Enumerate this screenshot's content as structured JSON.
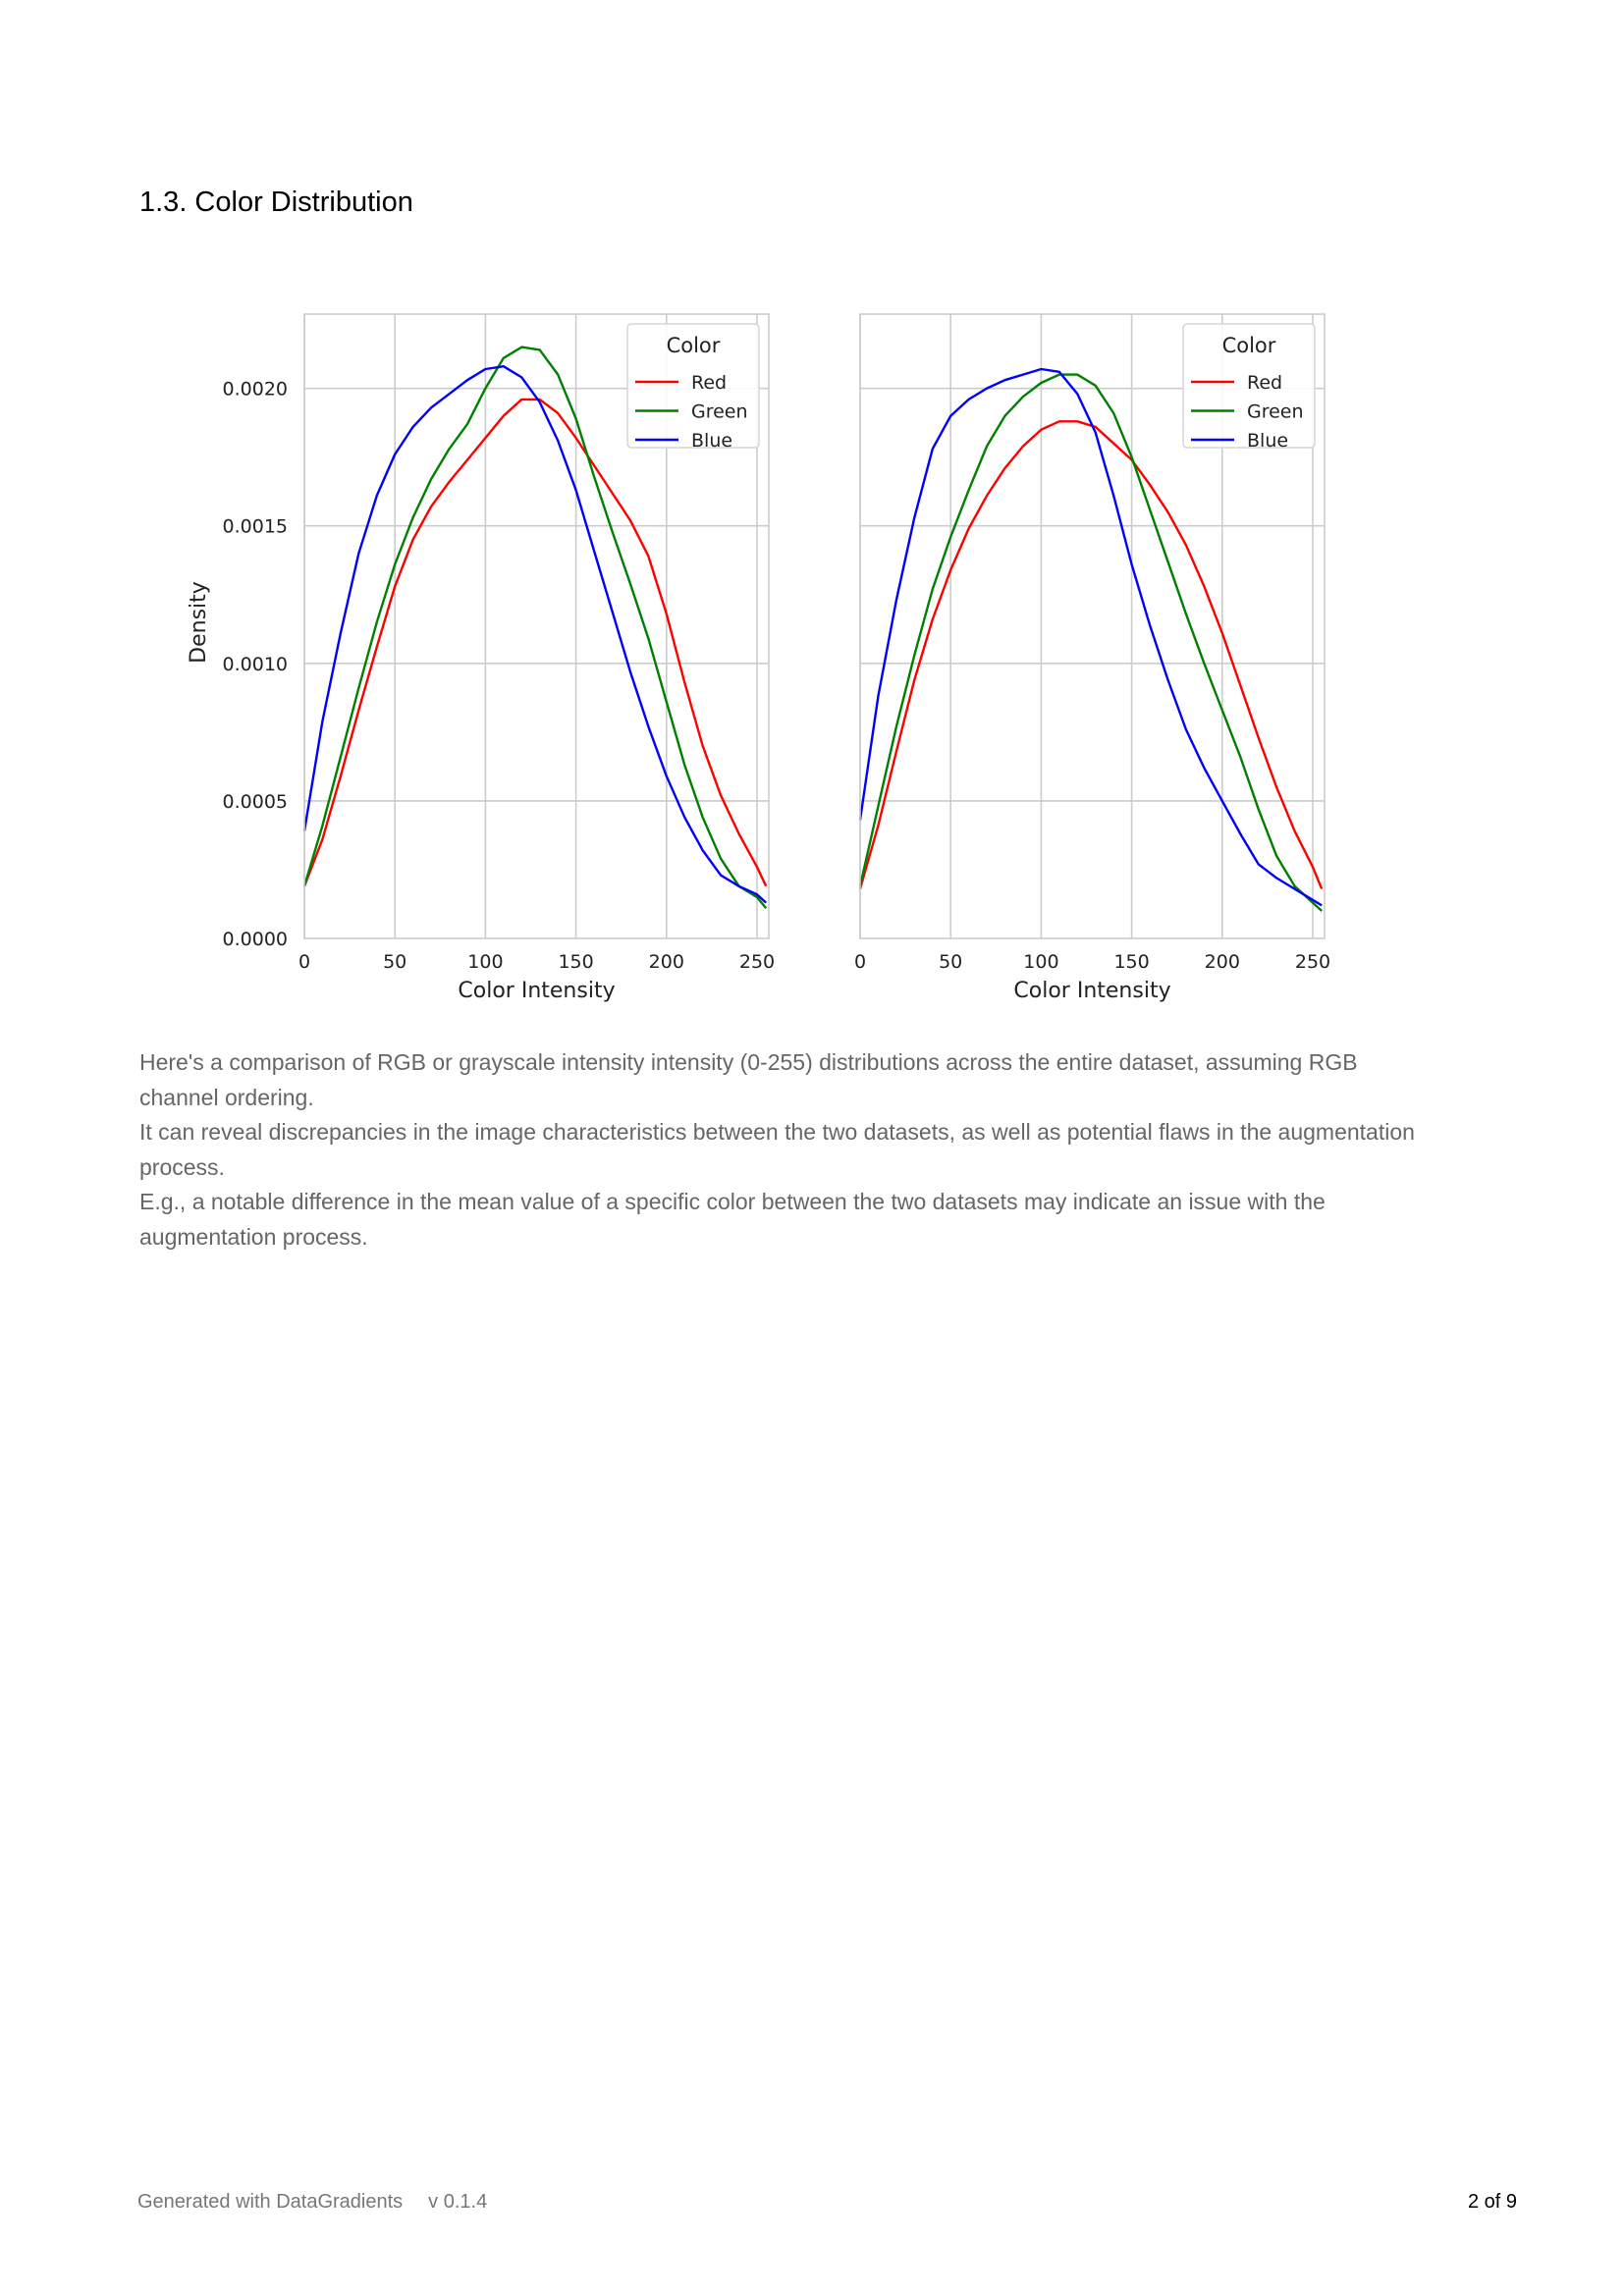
{
  "section": {
    "title": "1.3. Color Distribution"
  },
  "description": [
    "Here's a comparison of RGB or grayscale intensity intensity (0-255) distributions across the entire dataset, assuming RGB channel ordering.",
    "It can reveal discrepancies in the image characteristics between the two datasets, as well as potential flaws in the augmentation process.",
    "E.g., a notable difference in the mean value of a specific color between the two datasets may indicate an issue with the augmentation process."
  ],
  "footer": {
    "generated": "Generated with DataGradients",
    "version": "v 0.1.4",
    "page": "2 of 9"
  },
  "chart_data": [
    {
      "type": "line",
      "xlabel": "Color Intensity",
      "ylabel": "Density",
      "xlim": [
        0,
        255
      ],
      "ylim": [
        0,
        0.00227
      ],
      "xticks": [
        0,
        50,
        100,
        150,
        200,
        250
      ],
      "yticks": [
        0,
        0.0005,
        0.001,
        0.0015,
        0.002
      ],
      "ytick_labels": [
        "0.0000",
        "0.0005",
        "0.0010",
        "0.0015",
        "0.0020"
      ],
      "grid": true,
      "legend": {
        "title": "Color",
        "position": "top-right"
      },
      "series": [
        {
          "name": "Red",
          "color": "#ff0000",
          "x": [
            0,
            10,
            20,
            30,
            40,
            50,
            60,
            70,
            80,
            90,
            100,
            110,
            120,
            130,
            140,
            150,
            160,
            170,
            180,
            190,
            200,
            210,
            220,
            230,
            240,
            250,
            255
          ],
          "y": [
            0.00019,
            0.00036,
            0.00059,
            0.00083,
            0.00106,
            0.00128,
            0.00145,
            0.00157,
            0.00166,
            0.00174,
            0.00182,
            0.0019,
            0.00196,
            0.00196,
            0.00191,
            0.00182,
            0.00172,
            0.00162,
            0.00152,
            0.00139,
            0.00118,
            0.00093,
            0.0007,
            0.00052,
            0.00038,
            0.00026,
            0.00019
          ]
        },
        {
          "name": "Green",
          "color": "#008000",
          "x": [
            0,
            10,
            20,
            30,
            40,
            50,
            60,
            70,
            80,
            90,
            100,
            110,
            120,
            130,
            140,
            150,
            160,
            170,
            180,
            190,
            200,
            210,
            220,
            230,
            240,
            250,
            255
          ],
          "y": [
            0.00019,
            0.00041,
            0.00066,
            0.00091,
            0.00115,
            0.00136,
            0.00153,
            0.00167,
            0.00178,
            0.00187,
            0.002,
            0.00211,
            0.00215,
            0.00214,
            0.00205,
            0.00189,
            0.00168,
            0.00148,
            0.00129,
            0.00109,
            0.00086,
            0.00063,
            0.00044,
            0.00029,
            0.00019,
            0.00015,
            0.00011
          ]
        },
        {
          "name": "Blue",
          "color": "#0000ff",
          "x": [
            0,
            10,
            20,
            30,
            40,
            50,
            60,
            70,
            80,
            90,
            100,
            110,
            120,
            130,
            140,
            150,
            160,
            170,
            180,
            190,
            200,
            210,
            220,
            230,
            240,
            250,
            255
          ],
          "y": [
            0.00039,
            0.00079,
            0.00111,
            0.0014,
            0.00161,
            0.00176,
            0.00186,
            0.00193,
            0.00198,
            0.00203,
            0.00207,
            0.00208,
            0.00204,
            0.00195,
            0.00181,
            0.00163,
            0.00141,
            0.00119,
            0.00097,
            0.00077,
            0.00059,
            0.00044,
            0.00032,
            0.00023,
            0.00019,
            0.00016,
            0.00013
          ]
        }
      ]
    },
    {
      "type": "line",
      "xlabel": "Color Intensity",
      "xlim": [
        0,
        255
      ],
      "ylim": [
        0,
        0.00227
      ],
      "xticks": [
        0,
        50,
        100,
        150,
        200,
        250
      ],
      "grid": true,
      "legend": {
        "title": "Color",
        "position": "top-right"
      },
      "series": [
        {
          "name": "Red",
          "color": "#ff0000",
          "x": [
            0,
            10,
            20,
            30,
            40,
            50,
            60,
            70,
            80,
            90,
            100,
            110,
            120,
            130,
            140,
            150,
            160,
            170,
            180,
            190,
            200,
            210,
            220,
            230,
            240,
            250,
            255
          ],
          "y": [
            0.00018,
            0.00041,
            0.00068,
            0.00094,
            0.00116,
            0.00134,
            0.00149,
            0.00161,
            0.00171,
            0.00179,
            0.00185,
            0.00188,
            0.00188,
            0.00186,
            0.0018,
            0.00174,
            0.00165,
            0.00155,
            0.00143,
            0.00128,
            0.00111,
            0.00092,
            0.00073,
            0.00055,
            0.00039,
            0.00026,
            0.00018
          ]
        },
        {
          "name": "Green",
          "color": "#008000",
          "x": [
            0,
            10,
            20,
            30,
            40,
            50,
            60,
            70,
            80,
            90,
            100,
            110,
            120,
            130,
            140,
            150,
            160,
            170,
            180,
            190,
            200,
            210,
            220,
            230,
            240,
            250,
            255
          ],
          "y": [
            0.00019,
            0.00048,
            0.00077,
            0.00103,
            0.00127,
            0.00146,
            0.00163,
            0.00179,
            0.0019,
            0.00197,
            0.00202,
            0.00205,
            0.00205,
            0.00201,
            0.00191,
            0.00175,
            0.00156,
            0.00137,
            0.00118,
            0.001,
            0.00083,
            0.00066,
            0.00047,
            0.0003,
            0.00019,
            0.00013,
            0.0001
          ]
        },
        {
          "name": "Blue",
          "color": "#0000ff",
          "x": [
            0,
            10,
            20,
            30,
            40,
            50,
            60,
            70,
            80,
            90,
            100,
            110,
            120,
            130,
            140,
            150,
            160,
            170,
            180,
            190,
            200,
            210,
            220,
            230,
            240,
            250,
            255
          ],
          "y": [
            0.00043,
            0.00088,
            0.00123,
            0.00153,
            0.00178,
            0.0019,
            0.00196,
            0.002,
            0.00203,
            0.00205,
            0.00207,
            0.00206,
            0.00198,
            0.00184,
            0.00161,
            0.00136,
            0.00114,
            0.00094,
            0.00076,
            0.00062,
            0.0005,
            0.00038,
            0.00027,
            0.00022,
            0.00018,
            0.00014,
            0.00012
          ]
        }
      ]
    }
  ]
}
